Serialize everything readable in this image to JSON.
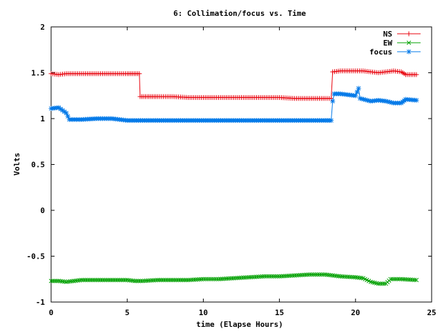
{
  "chart_data": {
    "type": "line",
    "title": "6: Collimation/focus vs. Time",
    "xlabel": "time (Elapse Hours)",
    "ylabel": "Volts",
    "xlim": [
      0,
      25
    ],
    "ylim": [
      -1,
      2
    ],
    "xticks": [
      0,
      5,
      10,
      15,
      20,
      25
    ],
    "yticks": [
      -1,
      -0.5,
      0,
      0.5,
      1,
      1.5,
      2
    ],
    "xtick_labels": [
      "0",
      "5",
      "10",
      "15",
      "20",
      "25"
    ],
    "ytick_labels": [
      "-1",
      "-0.5",
      "0",
      "0.5",
      "1",
      "1.5",
      "2"
    ],
    "legend_position": "top-right",
    "series": [
      {
        "name": "NS",
        "color": "#e8000b",
        "marker": "plus",
        "points": [
          [
            0,
            1.49
          ],
          [
            0.5,
            1.48
          ],
          [
            1,
            1.49
          ],
          [
            2,
            1.49
          ],
          [
            3,
            1.49
          ],
          [
            4,
            1.49
          ],
          [
            5,
            1.49
          ],
          [
            5.8,
            1.49
          ],
          [
            5.85,
            1.24
          ],
          [
            7,
            1.24
          ],
          [
            8,
            1.24
          ],
          [
            9,
            1.23
          ],
          [
            10,
            1.23
          ],
          [
            11,
            1.23
          ],
          [
            12,
            1.23
          ],
          [
            13,
            1.23
          ],
          [
            14,
            1.23
          ],
          [
            15,
            1.23
          ],
          [
            16,
            1.22
          ],
          [
            17,
            1.22
          ],
          [
            18,
            1.22
          ],
          [
            18.4,
            1.22
          ],
          [
            18.5,
            1.51
          ],
          [
            19,
            1.52
          ],
          [
            20,
            1.52
          ],
          [
            20.5,
            1.52
          ],
          [
            21,
            1.51
          ],
          [
            21.5,
            1.5
          ],
          [
            22,
            1.51
          ],
          [
            22.5,
            1.52
          ],
          [
            23,
            1.51
          ],
          [
            23.3,
            1.48
          ],
          [
            24,
            1.48
          ]
        ]
      },
      {
        "name": "EW",
        "color": "#00a000",
        "marker": "cross",
        "points": [
          [
            0,
            -0.77
          ],
          [
            0.5,
            -0.77
          ],
          [
            1,
            -0.78
          ],
          [
            1.5,
            -0.77
          ],
          [
            2,
            -0.76
          ],
          [
            3,
            -0.76
          ],
          [
            4,
            -0.76
          ],
          [
            5,
            -0.76
          ],
          [
            5.5,
            -0.77
          ],
          [
            6,
            -0.77
          ],
          [
            7,
            -0.76
          ],
          [
            8,
            -0.76
          ],
          [
            9,
            -0.76
          ],
          [
            10,
            -0.75
          ],
          [
            11,
            -0.75
          ],
          [
            12,
            -0.74
          ],
          [
            13,
            -0.73
          ],
          [
            14,
            -0.72
          ],
          [
            15,
            -0.72
          ],
          [
            16,
            -0.71
          ],
          [
            17,
            -0.7
          ],
          [
            18,
            -0.7
          ],
          [
            18.5,
            -0.71
          ],
          [
            19,
            -0.72
          ],
          [
            20,
            -0.73
          ],
          [
            20.5,
            -0.74
          ],
          [
            21,
            -0.78
          ],
          [
            21.5,
            -0.8
          ],
          [
            22,
            -0.8
          ],
          [
            22.3,
            -0.75
          ],
          [
            23,
            -0.75
          ],
          [
            24,
            -0.76
          ]
        ]
      },
      {
        "name": "focus",
        "color": "#0078e8",
        "marker": "star",
        "points": [
          [
            0,
            1.11
          ],
          [
            0.5,
            1.12
          ],
          [
            1,
            1.06
          ],
          [
            1.2,
            0.99
          ],
          [
            2,
            0.99
          ],
          [
            3,
            1.0
          ],
          [
            4,
            1.0
          ],
          [
            5,
            0.98
          ],
          [
            6,
            0.98
          ],
          [
            7,
            0.98
          ],
          [
            8,
            0.98
          ],
          [
            9,
            0.98
          ],
          [
            10,
            0.98
          ],
          [
            11,
            0.98
          ],
          [
            12,
            0.98
          ],
          [
            13,
            0.98
          ],
          [
            14,
            0.98
          ],
          [
            15,
            0.98
          ],
          [
            16,
            0.98
          ],
          [
            17,
            0.98
          ],
          [
            18,
            0.98
          ],
          [
            18.4,
            0.98
          ],
          [
            18.5,
            1.19
          ],
          [
            18.6,
            1.27
          ],
          [
            19,
            1.27
          ],
          [
            19.5,
            1.26
          ],
          [
            20,
            1.25
          ],
          [
            20.2,
            1.33
          ],
          [
            20.3,
            1.22
          ],
          [
            21,
            1.19
          ],
          [
            21.5,
            1.2
          ],
          [
            22,
            1.19
          ],
          [
            22.5,
            1.17
          ],
          [
            23,
            1.17
          ],
          [
            23.3,
            1.21
          ],
          [
            24,
            1.2
          ]
        ]
      }
    ]
  }
}
